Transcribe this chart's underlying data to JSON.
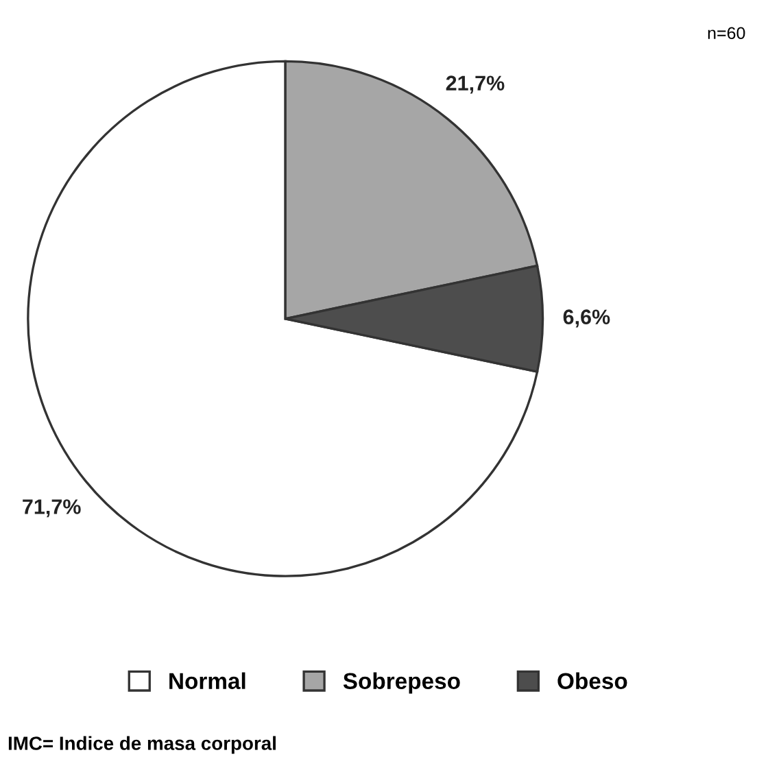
{
  "chart_data": {
    "type": "pie",
    "categories": [
      "Normal",
      "Sobrepeso",
      "Obeso"
    ],
    "values": [
      71.7,
      21.7,
      6.6
    ],
    "colors": [
      "#ffffff",
      "#a6a6a6",
      "#4d4d4d"
    ],
    "value_labels": [
      "71,7%",
      "21,7%",
      "6,6%"
    ],
    "legend": "bottom",
    "annotations": [
      "n=60",
      "IMC= Indice de masa corporal"
    ]
  }
}
